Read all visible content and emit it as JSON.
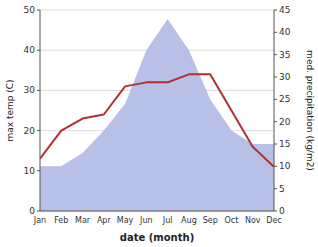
{
  "chart_data": {
    "type": "line",
    "categories": [
      "Jan",
      "Feb",
      "Mar",
      "Apr",
      "May",
      "Jun",
      "Jul",
      "Aug",
      "Sep",
      "Oct",
      "Nov",
      "Dec"
    ],
    "series": [
      {
        "type": "line",
        "color": "#b03030",
        "values": [
          13,
          20,
          23,
          24,
          31,
          32,
          32,
          34,
          34,
          25,
          16,
          11
        ]
      },
      {
        "type": "area",
        "color": "#b8c0e8",
        "axis": "y2",
        "values": [
          10,
          10,
          13,
          18,
          24,
          36,
          43,
          36,
          25,
          18,
          15,
          15
        ]
      }
    ],
    "xlabel": "date (month)",
    "ylabel": "max temp (C)",
    "y2label": "med. precipitation (kg/m2)",
    "ylim": [
      0,
      50
    ],
    "yticks": [
      0,
      10,
      20,
      30,
      40,
      50
    ],
    "y2lim": [
      0,
      45
    ],
    "y2ticks": [
      0,
      5,
      10,
      15,
      20,
      25,
      30,
      35,
      40,
      45
    ],
    "grid": true
  }
}
